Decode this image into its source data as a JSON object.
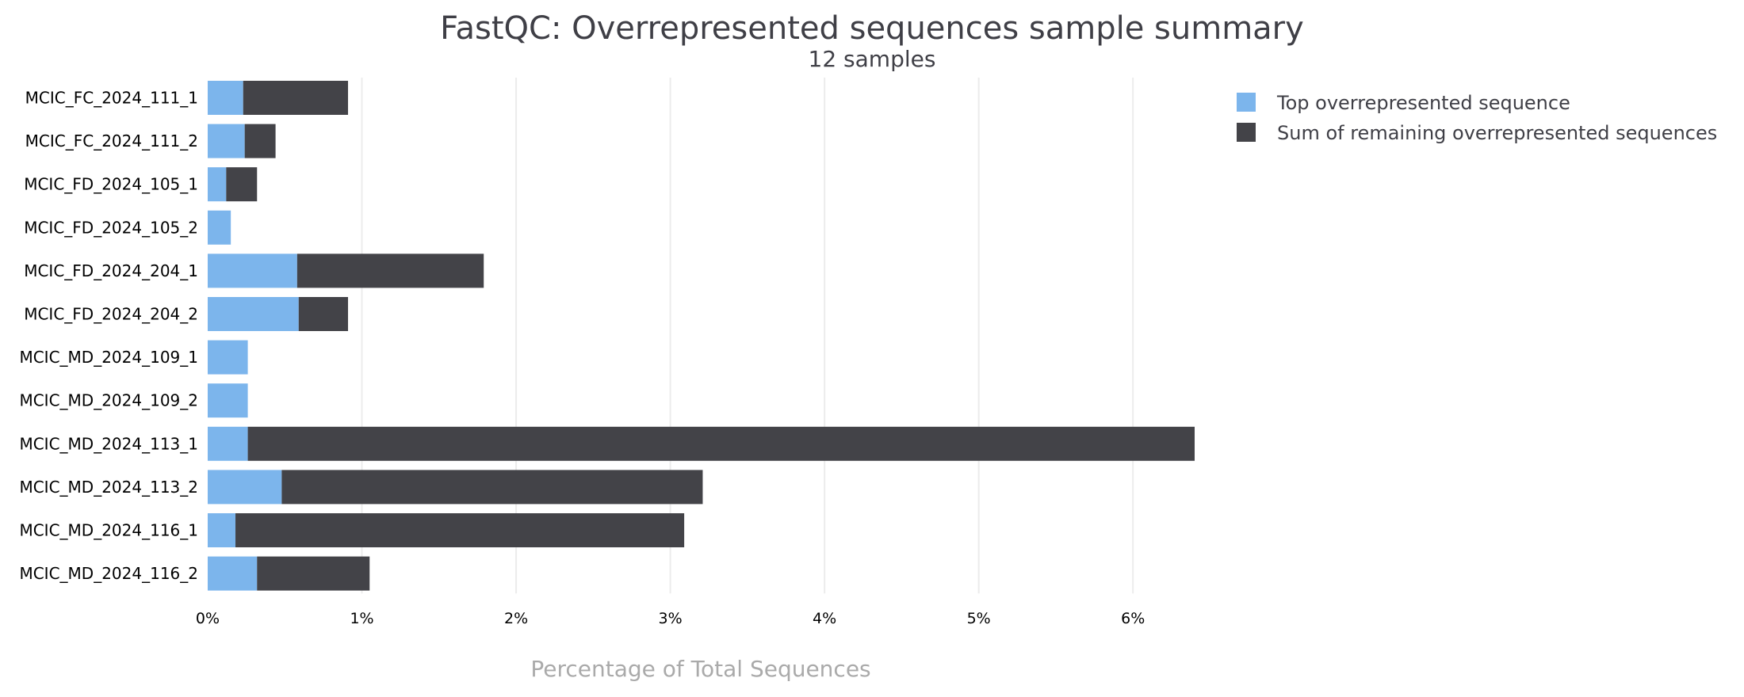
{
  "chart_data": {
    "type": "bar",
    "orientation": "horizontal",
    "stacked": true,
    "title": "FastQC: Overrepresented sequences sample summary",
    "subtitle": "12 samples",
    "xlabel": "Percentage of Total Sequences",
    "ylabel": "",
    "xlim": [
      0,
      6.4
    ],
    "x_ticks": [
      0,
      1,
      2,
      3,
      4,
      5,
      6
    ],
    "x_tick_labels": [
      "0%",
      "1%",
      "2%",
      "3%",
      "4%",
      "5%",
      "6%"
    ],
    "grid": true,
    "legend_position": "top-right",
    "categories": [
      "MCIC_FC_2024_111_1",
      "MCIC_FC_2024_111_2",
      "MCIC_FD_2024_105_1",
      "MCIC_FD_2024_105_2",
      "MCIC_FD_2024_204_1",
      "MCIC_FD_2024_204_2",
      "MCIC_MD_2024_109_1",
      "MCIC_MD_2024_109_2",
      "MCIC_MD_2024_113_1",
      "MCIC_MD_2024_113_2",
      "MCIC_MD_2024_116_1",
      "MCIC_MD_2024_116_2"
    ],
    "series": [
      {
        "name": "Top overrepresented sequence",
        "color": "#7cb5ec",
        "values": [
          0.23,
          0.24,
          0.12,
          0.15,
          0.58,
          0.59,
          0.26,
          0.26,
          0.26,
          0.48,
          0.18,
          0.32
        ]
      },
      {
        "name": "Sum of remaining overrepresented sequences",
        "color": "#434348",
        "values": [
          0.68,
          0.2,
          0.2,
          0.0,
          1.21,
          0.32,
          0.0,
          0.0,
          6.14,
          2.73,
          2.91,
          0.73
        ]
      }
    ]
  }
}
